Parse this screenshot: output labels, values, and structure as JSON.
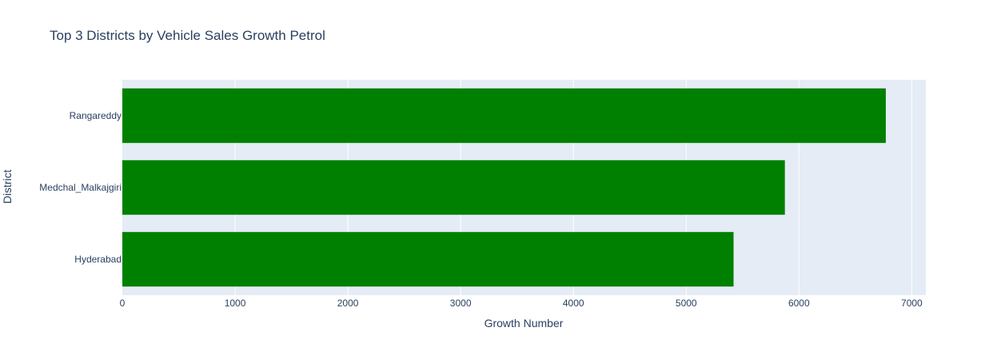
{
  "chart_data": {
    "type": "bar",
    "orientation": "horizontal",
    "title": "Top 3 Districts by Vehicle Sales Growth Petrol",
    "xlabel": "Growth Number",
    "ylabel": "District",
    "categories": [
      "Rangareddy",
      "Medchal_Malkajgiri",
      "Hyderabad"
    ],
    "values": [
      6770,
      5875,
      5420
    ],
    "xlim": [
      0,
      7125
    ],
    "xticks": [
      0,
      1000,
      2000,
      3000,
      4000,
      5000,
      6000,
      7000
    ],
    "grid": true,
    "bar_color": "#008000",
    "plot_bg": "#e5ecf6"
  }
}
